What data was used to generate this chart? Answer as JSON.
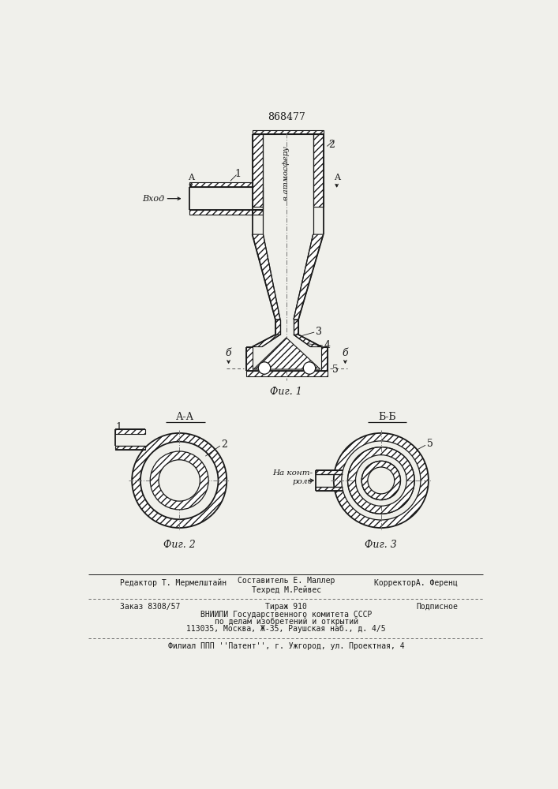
{
  "patent_number": "868477",
  "fig1_caption": "Фиг. 1",
  "fig2_caption": "Фиг. 2",
  "fig3_caption": "Фиг. 3",
  "label_vhod": "Вход",
  "label_atm": "в атмосферу",
  "label_aa": "А-А",
  "label_bb": "Б-Б",
  "label_na_control": "На конт-\nроль",
  "editor_line": "Редактор Т. Мермелштайн",
  "composer_line": "Составитель Е. Маллер",
  "tech_line": "Техред М.Рейвес",
  "corrector_line": "КорректорА. Ференц",
  "order_line": "Заказ 8308/57",
  "edition_line": "Тираж 910",
  "signed_line": "Подписное",
  "vnipi_line1": "ВНИИПИ Государственного комитета СССР",
  "vnipi_line2": "по делам изобретений и открытий",
  "address_line": "113035, Москва, Ж-35, Раушская наб., д. 4/5",
  "filial_line": "Филиал ППП ''Патент'', г. Ужгород, ул. Проектная, 4",
  "bg_color": "#f0f0eb",
  "line_color": "#1a1a1a"
}
